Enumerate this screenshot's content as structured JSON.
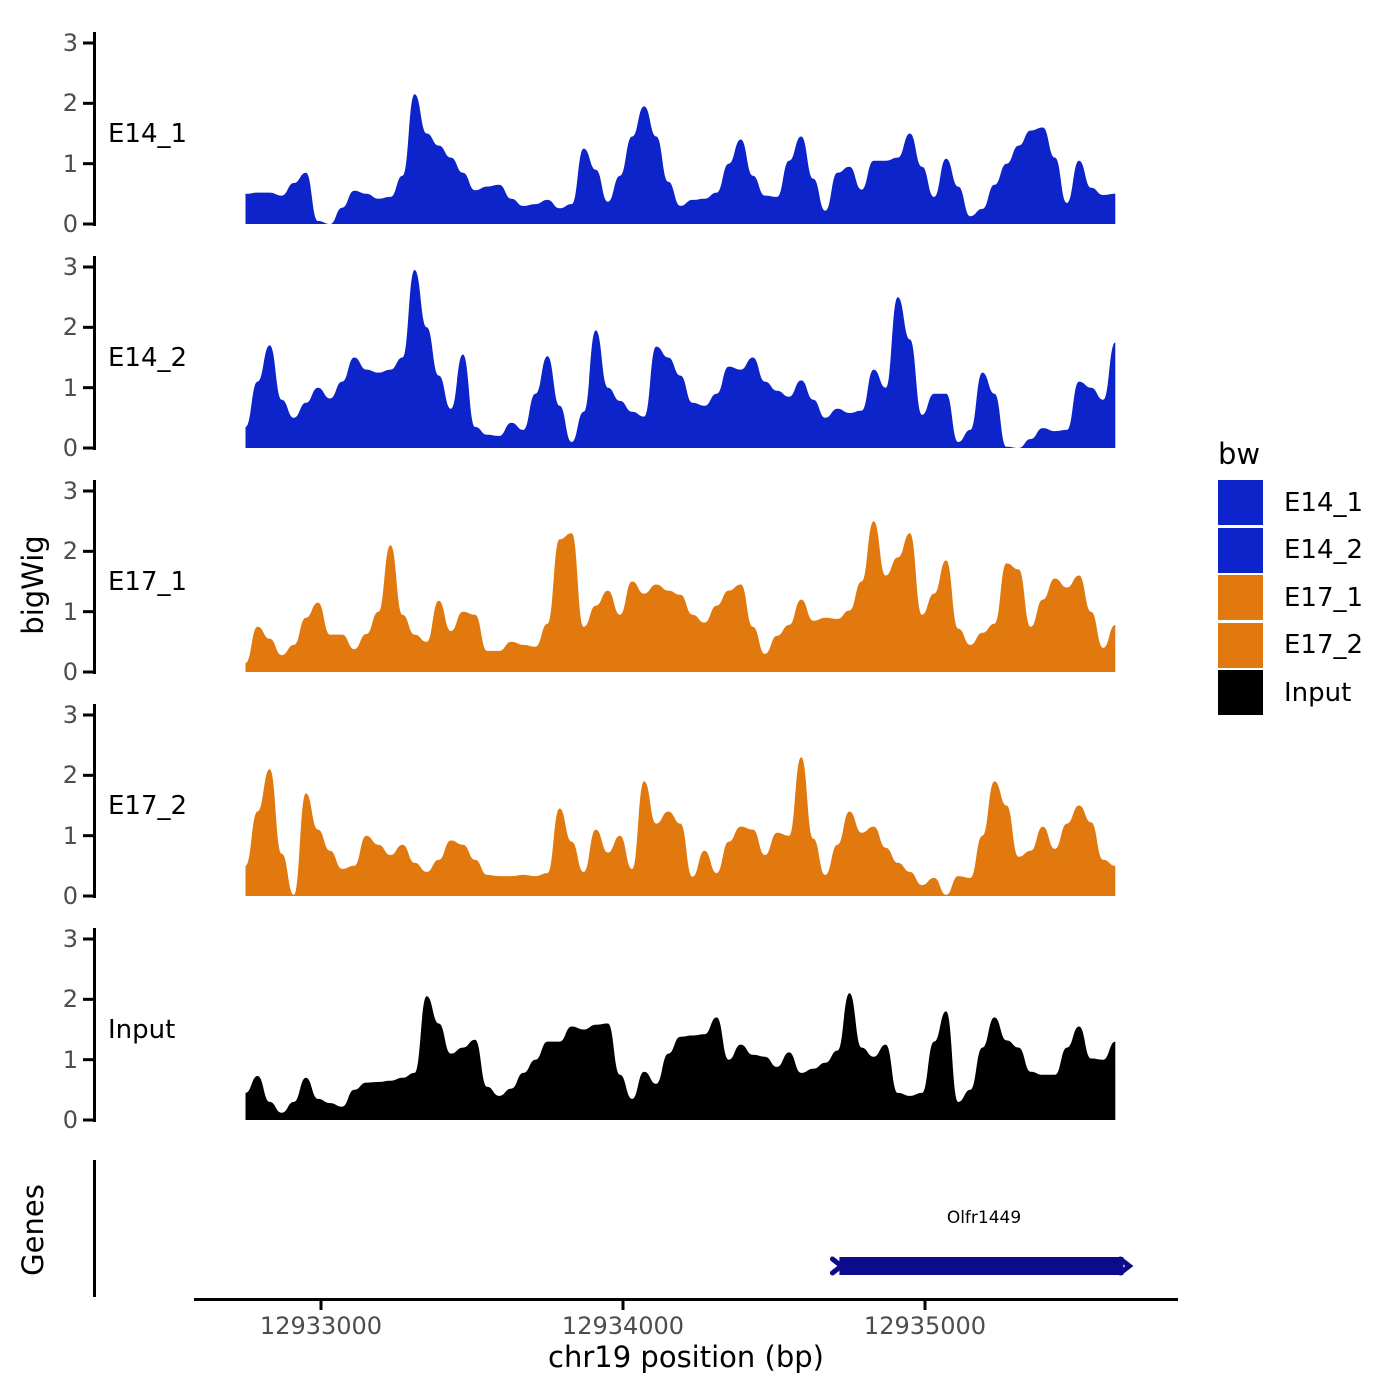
{
  "axes": {
    "y_title": "bigWig",
    "genes_title": "Genes",
    "x_title": "chr19 position (bp)",
    "y_tick_labels": [
      "3",
      "2",
      "1",
      "0"
    ],
    "x_tick_labels": [
      "12933000",
      "12934000",
      "12935000"
    ]
  },
  "legend": {
    "title": "bw",
    "items": [
      {
        "label": "E14_1",
        "color": "#0D24CB"
      },
      {
        "label": "E14_2",
        "color": "#0D24CB"
      },
      {
        "label": "E17_1",
        "color": "#E2790F"
      },
      {
        "label": "E17_2",
        "color": "#E2790F"
      },
      {
        "label": "Input",
        "color": "#000000"
      }
    ]
  },
  "chart_data": {
    "type": "area",
    "title": "",
    "xlabel": "chr19 position (bp)",
    "ylabel": "bigWig",
    "ylim": [
      0,
      3
    ],
    "y_ticks": [
      0,
      1,
      2,
      3
    ],
    "x_ticks_bp": [
      12933000,
      12934000,
      12935000
    ],
    "x_range_bp": [
      12932580,
      12935840
    ],
    "x_start_bp": 12932750,
    "x_step_bp": 40,
    "grid": "off",
    "legend_position": "right",
    "series": [
      {
        "name": "E14_1",
        "color": "#0D24CB",
        "values": [
          0.5,
          0.52,
          0.52,
          0.47,
          0.68,
          0.85,
          0.05,
          0,
          0.27,
          0.55,
          0.5,
          0.42,
          0.45,
          0.8,
          2.15,
          1.5,
          1.3,
          1.1,
          0.85,
          0.56,
          0.62,
          0.65,
          0.42,
          0.3,
          0.33,
          0.4,
          0.26,
          0.33,
          1.25,
          0.9,
          0.37,
          0.8,
          1.45,
          1.95,
          1.45,
          0.7,
          0.3,
          0.4,
          0.42,
          0.52,
          1.0,
          1.4,
          0.8,
          0.47,
          0.45,
          1.05,
          1.45,
          0.75,
          0.22,
          0.85,
          0.95,
          0.57,
          1.05,
          1.05,
          1.1,
          1.5,
          0.95,
          0.45,
          1.08,
          0.62,
          0.13,
          0.25,
          0.65,
          1.0,
          1.3,
          1.55,
          1.6,
          1.1,
          0.35,
          1.05,
          0.6,
          0.48,
          0.5
        ]
      },
      {
        "name": "E14_2",
        "color": "#0D24CB",
        "values": [
          0.35,
          1.1,
          1.7,
          0.8,
          0.5,
          0.75,
          1.0,
          0.82,
          1.1,
          1.5,
          1.3,
          1.25,
          1.3,
          1.5,
          2.95,
          2.0,
          1.2,
          0.65,
          1.55,
          0.35,
          0.22,
          0.2,
          0.42,
          0.3,
          0.9,
          1.52,
          0.7,
          0.1,
          0.6,
          1.95,
          1.0,
          0.78,
          0.6,
          0.52,
          1.68,
          1.5,
          1.2,
          0.75,
          0.7,
          0.9,
          1.35,
          1.3,
          1.5,
          1.1,
          0.95,
          0.85,
          1.12,
          0.8,
          0.5,
          0.65,
          0.58,
          0.62,
          1.3,
          1.0,
          2.5,
          1.8,
          0.55,
          0.9,
          0.9,
          0.1,
          0.3,
          1.25,
          0.9,
          0.02,
          0,
          0.15,
          0.33,
          0.28,
          0.3,
          1.1,
          1.0,
          0.8,
          1.75
        ]
      },
      {
        "name": "E17_1",
        "color": "#E2790F",
        "values": [
          0.15,
          0.75,
          0.55,
          0.28,
          0.45,
          0.9,
          1.15,
          0.62,
          0.62,
          0.38,
          0.63,
          1.0,
          2.1,
          0.95,
          0.62,
          0.5,
          1.18,
          0.68,
          1.0,
          0.95,
          0.35,
          0.35,
          0.5,
          0.45,
          0.42,
          0.8,
          2.2,
          2.3,
          0.75,
          1.1,
          1.35,
          0.95,
          1.5,
          1.3,
          1.45,
          1.35,
          1.28,
          0.95,
          0.82,
          1.1,
          1.35,
          1.45,
          0.75,
          0.3,
          0.6,
          0.78,
          1.2,
          0.85,
          0.9,
          0.88,
          1.02,
          1.5,
          2.5,
          1.6,
          1.9,
          2.3,
          0.95,
          1.3,
          1.85,
          0.72,
          0.45,
          0.65,
          0.8,
          1.8,
          1.7,
          0.75,
          1.2,
          1.55,
          1.4,
          1.6,
          1.0,
          0.4,
          0.78
        ]
      },
      {
        "name": "E17_2",
        "color": "#E2790F",
        "values": [
          0.5,
          1.4,
          2.1,
          0.7,
          0.02,
          1.7,
          1.1,
          0.75,
          0.45,
          0.5,
          1.0,
          0.85,
          0.68,
          0.85,
          0.55,
          0.4,
          0.6,
          0.92,
          0.85,
          0.6,
          0.35,
          0.33,
          0.33,
          0.35,
          0.33,
          0.38,
          1.45,
          0.9,
          0.4,
          1.1,
          0.72,
          1.0,
          0.45,
          1.9,
          1.2,
          1.4,
          1.2,
          0.32,
          0.75,
          0.38,
          0.9,
          1.15,
          1.1,
          0.68,
          1.05,
          1.0,
          2.3,
          0.95,
          0.35,
          0.85,
          1.4,
          1.05,
          1.15,
          0.8,
          0.55,
          0.4,
          0.18,
          0.3,
          0.02,
          0.33,
          0.3,
          1.0,
          1.9,
          1.5,
          0.65,
          0.75,
          1.15,
          0.78,
          1.2,
          1.5,
          1.22,
          0.6,
          0.5
        ]
      },
      {
        "name": "Input",
        "color": "#000000",
        "values": [
          0.45,
          0.73,
          0.3,
          0.12,
          0.3,
          0.7,
          0.35,
          0.28,
          0.22,
          0.5,
          0.62,
          0.63,
          0.65,
          0.7,
          0.78,
          2.05,
          1.6,
          1.1,
          1.2,
          1.33,
          0.55,
          0.4,
          0.52,
          0.78,
          1.0,
          1.3,
          1.3,
          1.55,
          1.5,
          1.58,
          1.6,
          0.75,
          0.35,
          0.8,
          0.6,
          1.1,
          1.38,
          1.4,
          1.42,
          1.7,
          1.0,
          1.25,
          1.08,
          1.05,
          0.88,
          1.12,
          0.78,
          0.85,
          0.95,
          1.15,
          2.1,
          1.2,
          1.05,
          1.25,
          0.45,
          0.4,
          0.45,
          1.3,
          1.8,
          0.3,
          0.5,
          1.2,
          1.7,
          1.32,
          1.2,
          0.8,
          0.75,
          0.75,
          1.2,
          1.55,
          1.02,
          1.0,
          1.3
        ]
      }
    ],
    "gene_track": {
      "label": "Genes",
      "genes": [
        {
          "name": "Olfr1449",
          "start_bp": 12934710,
          "end_bp": 12935670,
          "strand": "+",
          "color": "#0B0B8B"
        }
      ]
    }
  }
}
